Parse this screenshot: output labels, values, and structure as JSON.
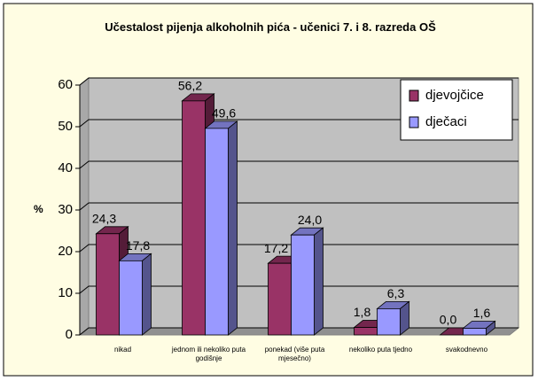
{
  "chart_data": {
    "type": "bar3d",
    "title": "Učestalost pijenja alkoholnih pića - učenici 7. i 8. razreda OŠ",
    "ylabel": "%",
    "categories": [
      "nikad",
      "jednom ili nekoliko puta godišnje",
      "ponekad (više puta mjesečno)",
      "nekoliko puta tjedno",
      "svakodnevno"
    ],
    "series": [
      {
        "name": "djevojčice",
        "color": "#993366",
        "values": [
          24.3,
          56.2,
          17.2,
          1.8,
          0.0
        ],
        "value_labels": [
          "24,3",
          "56,2",
          "17,2",
          "1,8",
          "0,0"
        ]
      },
      {
        "name": "dječaci",
        "color": "#9999ff",
        "values": [
          17.8,
          49.6,
          24.0,
          6.3,
          1.6
        ],
        "value_labels": [
          "17,8",
          "49,6",
          "24,0",
          "6,3",
          "1,6"
        ]
      }
    ],
    "ylim": [
      0,
      60
    ],
    "yticks": [
      0,
      10,
      20,
      30,
      40,
      50,
      60
    ],
    "grid": true,
    "legend": "upper right"
  }
}
